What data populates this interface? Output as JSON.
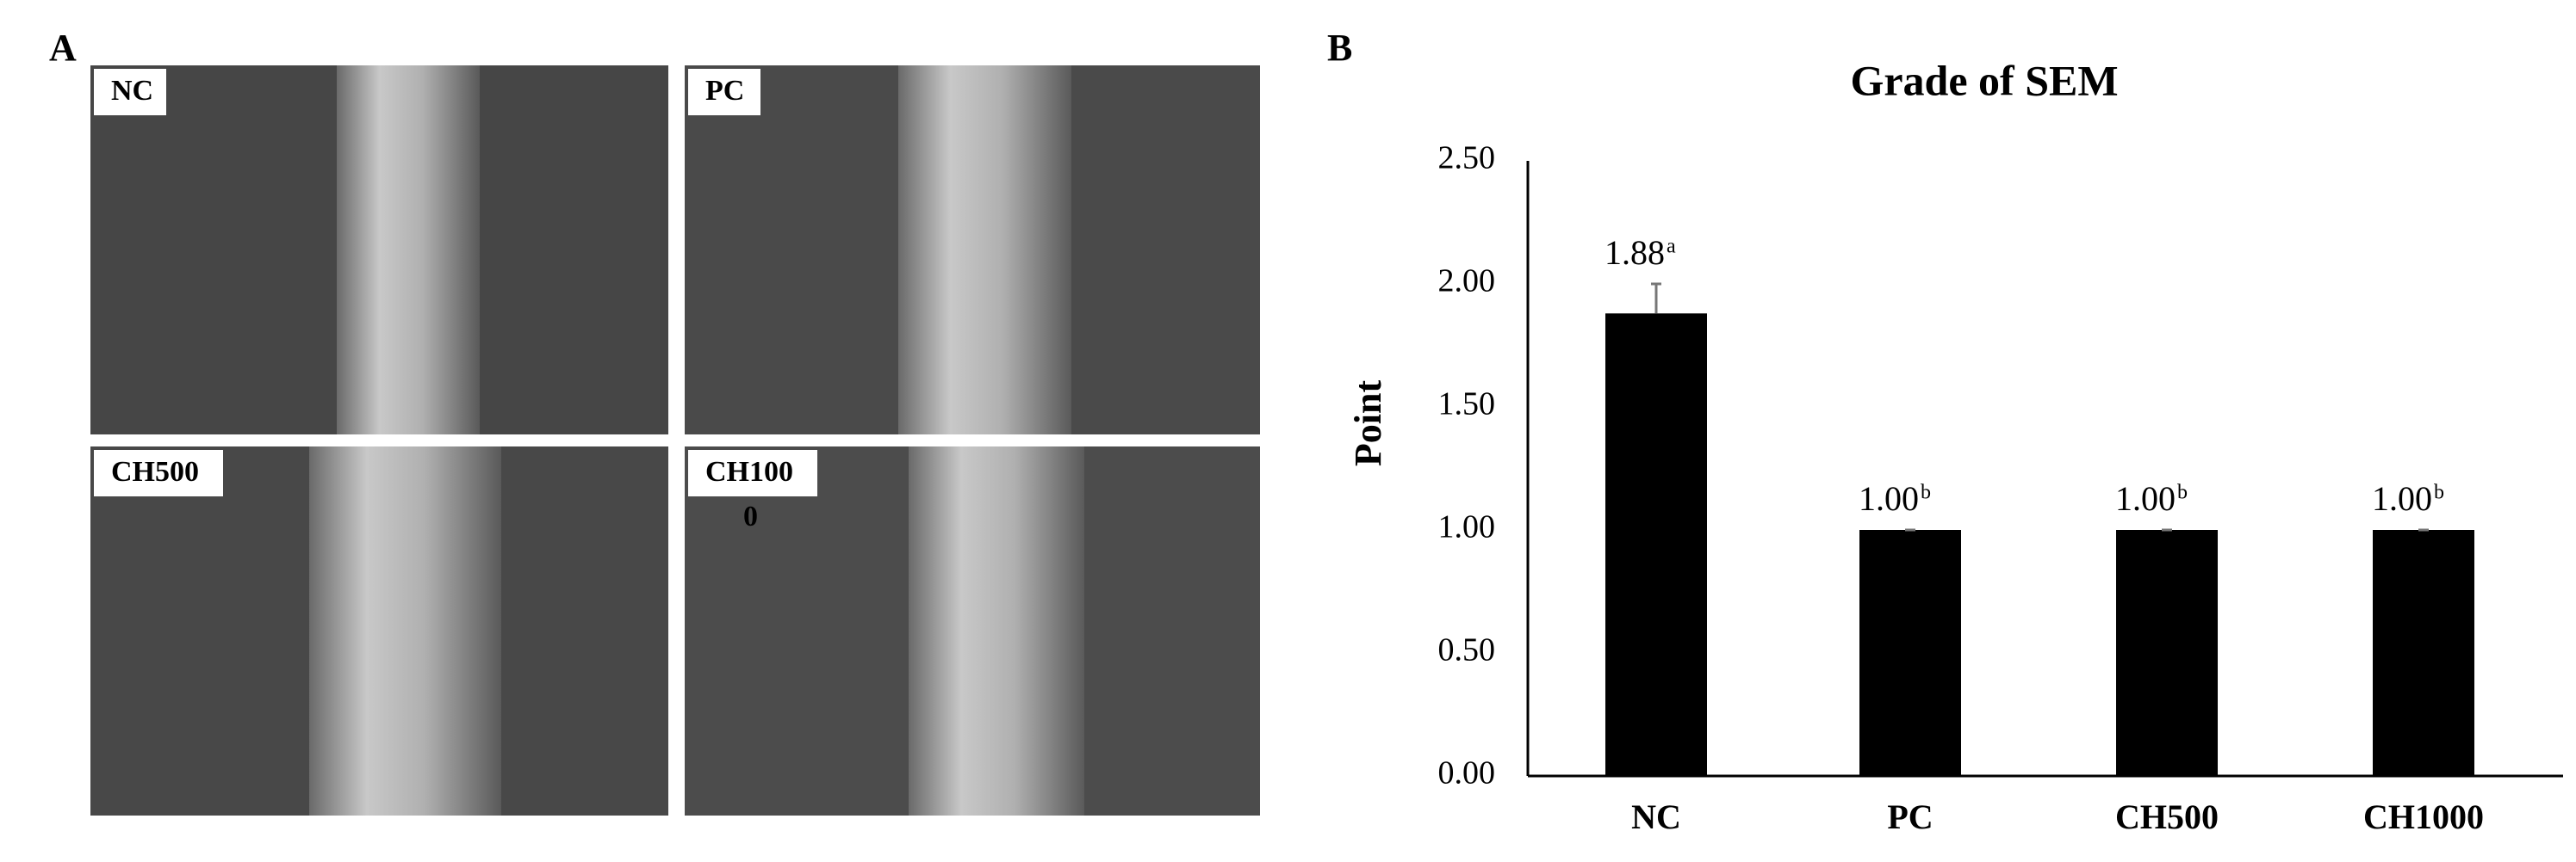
{
  "figure": {
    "panel_a": "A",
    "panel_b": "B",
    "images": [
      {
        "lines": [
          "NC"
        ]
      },
      {
        "lines": [
          "PC"
        ]
      },
      {
        "lines": [
          "CH500"
        ]
      },
      {
        "lines": [
          "CH100",
          "0"
        ]
      }
    ]
  },
  "chart_data": {
    "type": "bar",
    "title": "Grade of SEM",
    "y_label": "Point",
    "categories": [
      "NC",
      "PC",
      "CH500",
      "CH1000"
    ],
    "values": [
      1.88,
      1.0,
      1.0,
      1.0
    ],
    "value_labels": [
      "1.88",
      "1.00",
      "1.00",
      "1.00"
    ],
    "letters": [
      "a",
      "b",
      "b",
      "b"
    ],
    "errors": [
      0.12,
      0,
      0,
      0
    ],
    "color": "#000000",
    "ylim": [
      0,
      2.5
    ],
    "yticks": [
      {
        "value": 0,
        "label": "0.00"
      },
      {
        "value": 0.5,
        "label": "0.50"
      },
      {
        "value": 1,
        "label": "1.00"
      },
      {
        "value": 1.5,
        "label": "1.50"
      },
      {
        "value": 2,
        "label": "2.00"
      },
      {
        "value": 2.5,
        "label": "2.50"
      }
    ],
    "grid": false
  }
}
